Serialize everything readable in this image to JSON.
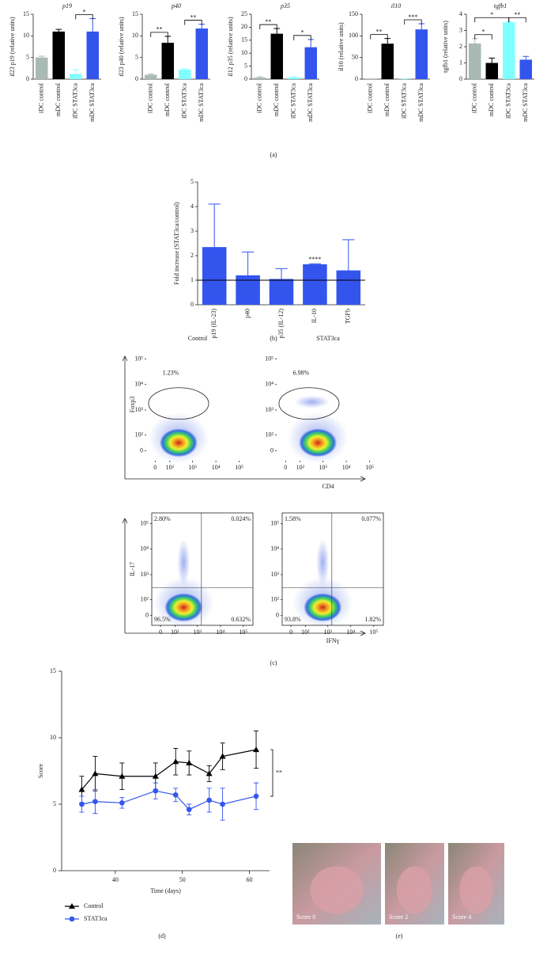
{
  "chart_data": [
    {
      "type": "bar",
      "title": "p19",
      "y_label": "il23 p19 (relative units)",
      "categories": [
        "iDC control",
        "mDC control",
        "iDC STAT3ca",
        "mDC STAT3ca"
      ],
      "values": [
        5,
        11,
        1.2,
        11
      ],
      "errors": [
        0.3,
        0.5,
        1,
        3
      ],
      "colors": [
        "#a9b9b5",
        "#000000",
        "#80ffff",
        "#3355ee"
      ],
      "ylim": [
        0,
        15
      ],
      "yticks": [
        0,
        5,
        10,
        15
      ],
      "annotations": [
        {
          "label": "*",
          "between": [
            "iDC STAT3ca",
            "mDC STAT3ca"
          ]
        }
      ]
    },
    {
      "type": "bar",
      "title": "p40",
      "y_label": "il23 p40 (relative units)",
      "categories": [
        "iDC control",
        "mDC control",
        "iDC STAT3ca",
        "mDC STAT3ca"
      ],
      "values": [
        1,
        8.4,
        2.2,
        11.7
      ],
      "errors": [
        0.2,
        1.5,
        0.2,
        1
      ],
      "colors": [
        "#a9b9b5",
        "#000000",
        "#80ffff",
        "#3355ee"
      ],
      "ylim": [
        0,
        15
      ],
      "yticks": [
        0,
        5,
        10,
        15
      ],
      "annotations": [
        {
          "label": "**",
          "between": [
            "iDC control",
            "mDC control"
          ]
        },
        {
          "label": "**",
          "between": [
            "iDC STAT3ca",
            "mDC STAT3ca"
          ]
        }
      ]
    },
    {
      "type": "bar",
      "title": "p35",
      "y_label": "il12 p35 (relative units)",
      "categories": [
        "iDC control",
        "mDC control",
        "iDC STAT3ca",
        "mDC STAT3ca"
      ],
      "values": [
        0.6,
        17.5,
        0.6,
        12.3
      ],
      "errors": [
        0.3,
        2,
        0.3,
        3
      ],
      "colors": [
        "#a9b9b5",
        "#000000",
        "#80ffff",
        "#3355ee"
      ],
      "ylim": [
        0,
        25
      ],
      "yticks": [
        0,
        5,
        10,
        15,
        20,
        25
      ],
      "annotations": [
        {
          "label": "**",
          "between": [
            "iDC control",
            "mDC control"
          ]
        },
        {
          "label": "*",
          "between": [
            "iDC STAT3ca",
            "mDC STAT3ca"
          ]
        }
      ]
    },
    {
      "type": "bar",
      "title": "il10",
      "y_label": "il10 (relative units)",
      "categories": [
        "iDC control",
        "mDC control",
        "iDC STAT3ca",
        "mDC STAT3ca"
      ],
      "values": [
        0.5,
        82,
        0.5,
        115
      ],
      "errors": [
        0.2,
        12,
        0.2,
        13
      ],
      "colors": [
        "#a9b9b5",
        "#000000",
        "#80ffff",
        "#3355ee"
      ],
      "ylim": [
        0,
        150
      ],
      "yticks": [
        0,
        50,
        100,
        150
      ],
      "annotations": [
        {
          "label": "**",
          "between": [
            "iDC control",
            "mDC control"
          ]
        },
        {
          "label": "***",
          "between": [
            "iDC STAT3ca",
            "mDC STAT3ca"
          ]
        }
      ]
    },
    {
      "type": "bar",
      "title": "tgfb1",
      "y_label": "tgfb1 (relative units)",
      "categories": [
        "iDC control",
        "mDC control",
        "iDC STAT3ca",
        "mDC STAT3ca"
      ],
      "values": [
        2.2,
        1.0,
        3.5,
        1.2
      ],
      "errors": [
        0.3,
        0.3,
        0.05,
        0.2
      ],
      "colors": [
        "#a9b9b5",
        "#000000",
        "#80ffff",
        "#3355ee"
      ],
      "ylim": [
        0,
        4
      ],
      "yticks": [
        0,
        1,
        2,
        3,
        4
      ],
      "annotations": [
        {
          "label": "*",
          "between": [
            "iDC control",
            "mDC control"
          ]
        },
        {
          "label": "*",
          "between": [
            "iDC control",
            "iDC STAT3ca"
          ]
        },
        {
          "label": "**",
          "between": [
            "iDC STAT3ca",
            "mDC STAT3ca"
          ]
        }
      ]
    },
    {
      "type": "bar",
      "y_label": "Fold increase (STAT3ca/control)",
      "categories": [
        "p19 (IL-23)",
        "p40",
        "p35 (IL-12)",
        "IL-10",
        "TGFb"
      ],
      "values": [
        2.35,
        1.2,
        1.05,
        1.65,
        1.4
      ],
      "errors": [
        1.75,
        0.95,
        0.42,
        0.02,
        1.25
      ],
      "color": "#3355ee",
      "reference": 1,
      "ylim": [
        0,
        5
      ],
      "yticks": [
        0,
        1,
        2,
        3,
        4,
        5
      ],
      "annotations": [
        {
          "label": "****",
          "category": "IL-10"
        }
      ]
    },
    {
      "type": "flow",
      "x_label": "CD4",
      "y_label": "Foxp3",
      "xlim": [
        -50,
        262144
      ],
      "ylim": [
        -50,
        262144
      ],
      "xticks": [
        0,
        {
          "value": 100,
          "label": "10²"
        },
        {
          "value": 1000,
          "label": "10³"
        },
        {
          "value": 10000,
          "label": "10⁴"
        },
        {
          "value": 100000,
          "label": "10⁵"
        }
      ],
      "yticks": [
        0,
        {
          "value": 100,
          "label": "10²"
        },
        {
          "value": 1000,
          "label": "10³"
        },
        {
          "value": 10000,
          "label": "10⁴"
        },
        {
          "value": 100000,
          "label": "10⁵"
        }
      ],
      "plots": [
        {
          "title": "Control",
          "gate_label": "1.23%"
        },
        {
          "title": "STAT3ca",
          "gate_label": "6.98%"
        }
      ]
    },
    {
      "type": "flow",
      "x_label": "IFNγ",
      "y_label": "IL-17",
      "xlim": [
        -50,
        262144
      ],
      "ylim": [
        -50,
        262144
      ],
      "quadrant_gate": [
        1500,
        300
      ],
      "xticks": [
        0,
        {
          "value": 100,
          "label": "10²"
        },
        {
          "value": 1000,
          "label": "10³"
        },
        {
          "value": 10000,
          "label": "10⁴"
        },
        {
          "value": 100000,
          "label": "10⁵"
        }
      ],
      "yticks": [
        0,
        {
          "value": 100,
          "label": "10²"
        },
        {
          "value": 1000,
          "label": "10³"
        },
        {
          "value": 10000,
          "label": "10⁴"
        },
        {
          "value": 100000,
          "label": "10⁵"
        }
      ],
      "plots": [
        {
          "quadrant_labels": [
            "2.80%",
            "0.024%",
            "96.5%",
            "0.632%"
          ]
        },
        {
          "quadrant_labels": [
            "1.58%",
            "0.077%",
            "93.8%",
            "1.82%"
          ]
        }
      ]
    },
    {
      "type": "line",
      "x_label": "Time (days)",
      "y_label": "Score",
      "x": [
        35,
        37,
        41,
        46,
        49,
        51,
        54,
        56,
        61
      ],
      "xlim": [
        32,
        63
      ],
      "xticks": [
        40,
        50,
        60
      ],
      "ylim": [
        0,
        15
      ],
      "yticks": [
        0,
        5,
        10,
        15
      ],
      "series": [
        {
          "name": "Control",
          "color": "#000000",
          "marker": "triangle",
          "values": [
            6.1,
            7.3,
            7.1,
            7.1,
            8.2,
            8.1,
            7.3,
            8.6,
            9.1
          ],
          "errors": [
            1,
            1.3,
            1,
            1,
            1,
            0.9,
            0.6,
            1,
            1.4
          ]
        },
        {
          "name": "STAT3ca",
          "color": "#3355ee",
          "marker": "circle",
          "values": [
            5,
            5.2,
            5.1,
            6,
            5.7,
            4.6,
            5.3,
            5,
            5.6
          ],
          "errors": [
            0.6,
            0.9,
            0.4,
            0.6,
            0.5,
            0.4,
            0.9,
            1.2,
            1
          ]
        }
      ],
      "annotations": [
        {
          "label": "**",
          "between": [
            "Control",
            "STAT3ca"
          ]
        }
      ]
    }
  ],
  "panel_labels": [
    "(a)",
    "(b)",
    "(c)",
    "(d)",
    "(e)"
  ],
  "photos": [
    {
      "label": "Score 0"
    },
    {
      "label": "Score 2"
    },
    {
      "label": "Score 4"
    }
  ]
}
